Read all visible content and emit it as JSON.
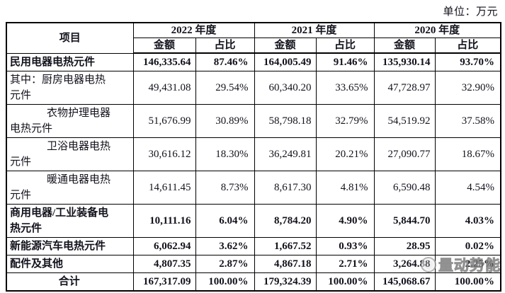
{
  "unit_label": "单位：万元",
  "watermark": {
    "text": "量动势能"
  },
  "table": {
    "item_header": "项目",
    "year_groups": [
      {
        "label": "2022 年度"
      },
      {
        "label": "2021 年度"
      },
      {
        "label": "2020 年度"
      }
    ],
    "sub_headers": {
      "amount": "金额",
      "ratio": "占比"
    },
    "rows": [
      {
        "label": "民用电器电热元件",
        "style": "bold",
        "values": [
          "146,335.64",
          "87.46%",
          "164,005.49",
          "91.46%",
          "135,930.14",
          "93.70%"
        ]
      },
      {
        "label": "其中：厨房电器电热\n元件",
        "style": "sub",
        "values": [
          "49,431.08",
          "29.54%",
          "60,340.20",
          "33.65%",
          "47,728.97",
          "32.90%"
        ]
      },
      {
        "label": "衣物护理电器\n电热元件",
        "style": "sub-indent",
        "values": [
          "51,676.99",
          "30.89%",
          "58,798.18",
          "32.79%",
          "54,519.92",
          "37.58%"
        ]
      },
      {
        "label": "卫浴电器电热\n元件",
        "style": "sub-indent",
        "values": [
          "30,616.12",
          "18.30%",
          "36,249.81",
          "20.21%",
          "27,090.77",
          "18.67%"
        ]
      },
      {
        "label": "暖通电器电热\n元件",
        "style": "sub-indent",
        "values": [
          "14,611.45",
          "8.73%",
          "8,617.30",
          "4.81%",
          "6,590.48",
          "4.54%"
        ]
      },
      {
        "label": "商用电器/工业装备电\n热元件",
        "style": "bold",
        "values": [
          "10,111.16",
          "6.04%",
          "8,784.20",
          "4.90%",
          "5,844.70",
          "4.03%"
        ]
      },
      {
        "label": "新能源汽车电热元件",
        "style": "bold",
        "values": [
          "6,062.94",
          "3.62%",
          "1,667.52",
          "0.93%",
          "28.95",
          "0.02%"
        ]
      },
      {
        "label": "配件及其他",
        "style": "bold",
        "values": [
          "4,807.35",
          "2.87%",
          "4,867.18",
          "2.71%",
          "3,264.88",
          "2.25%"
        ]
      },
      {
        "label": "合计",
        "style": "total",
        "values": [
          "167,317.09",
          "100.00%",
          "179,324.39",
          "100.00%",
          "145,068.67",
          "100.00%"
        ]
      }
    ]
  }
}
